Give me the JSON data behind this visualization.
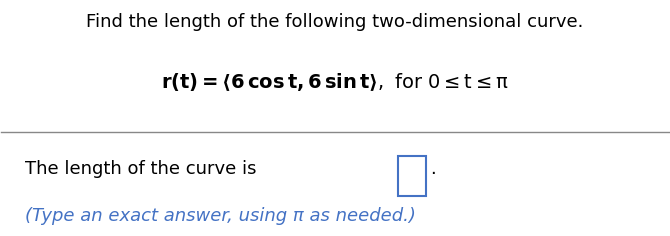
{
  "title": "Find the length of the following two-dimensional curve.",
  "answer_text": "The length of the curve is",
  "hint_text": "(Type an exact answer, using π as needed.)",
  "bg_color": "#ffffff",
  "title_color": "#000000",
  "equation_color": "#000000",
  "answer_color": "#000000",
  "hint_color": "#4472c4",
  "box_color": "#4472c4",
  "divider_color": "#888888",
  "title_fontsize": 13,
  "eq_fontsize": 14,
  "answer_fontsize": 13,
  "hint_fontsize": 13
}
